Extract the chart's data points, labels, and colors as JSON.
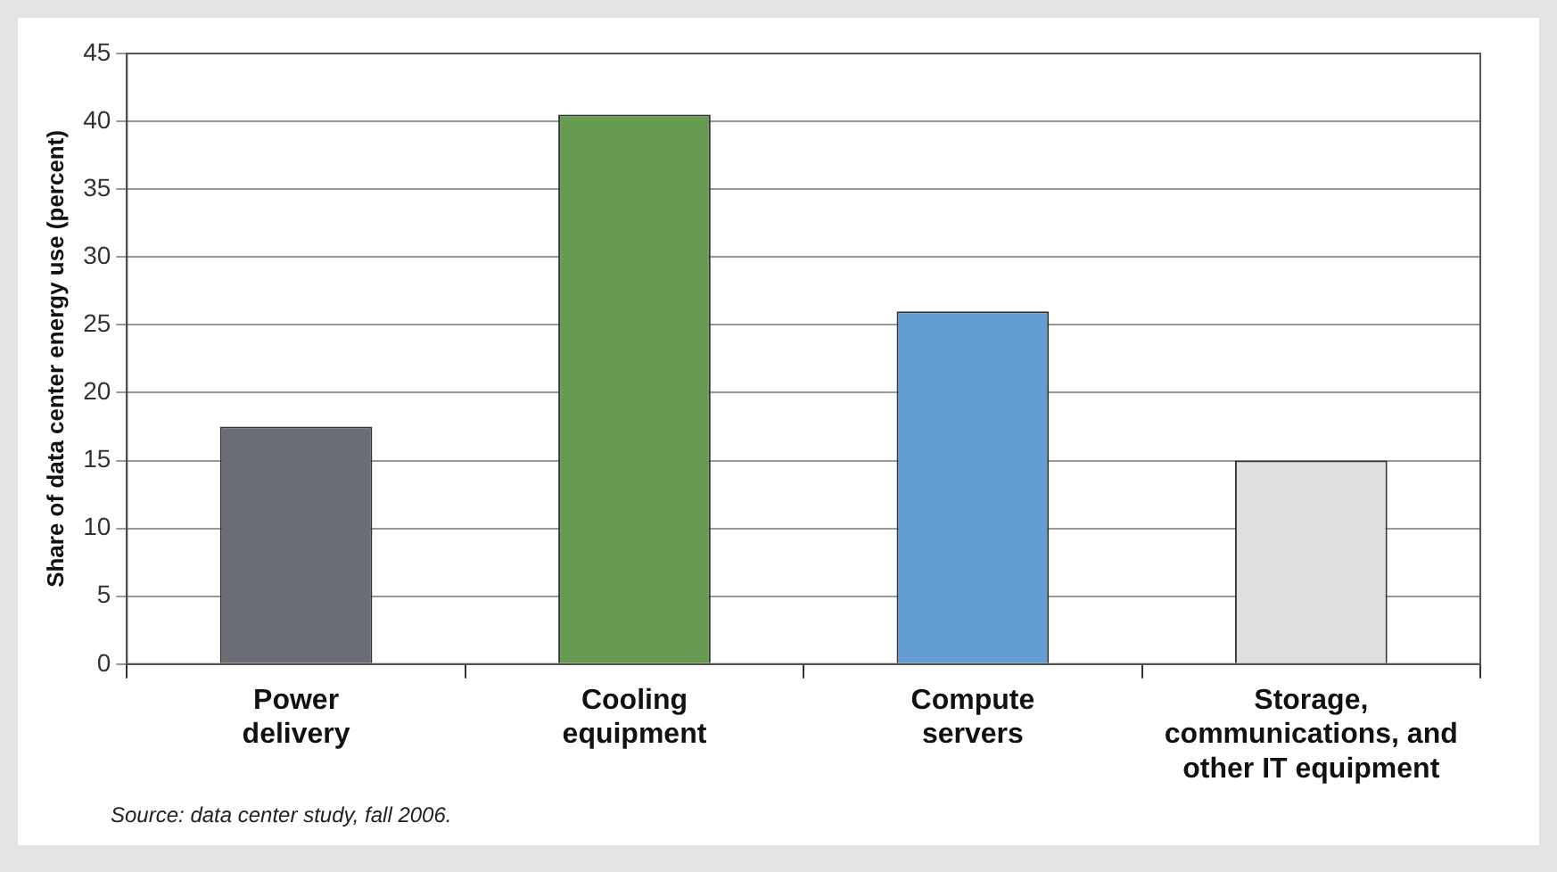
{
  "chart_data": {
    "type": "bar",
    "ylabel": "Share of data center energy use (percent)",
    "categories": [
      "Power delivery",
      "Cooling equipment",
      "Compute servers",
      "Storage, communications, and other IT equipment"
    ],
    "values": [
      17.5,
      40.5,
      26,
      15
    ],
    "colors": [
      "#6a6d76",
      "#689b52",
      "#649dd3",
      "#dee0df"
    ],
    "ylim": [
      0,
      45
    ],
    "yticks": [
      0,
      5,
      10,
      15,
      20,
      25,
      30,
      35,
      40,
      45
    ],
    "grid": "y",
    "annotations": [
      "Source: data center study, fall 2006."
    ]
  }
}
